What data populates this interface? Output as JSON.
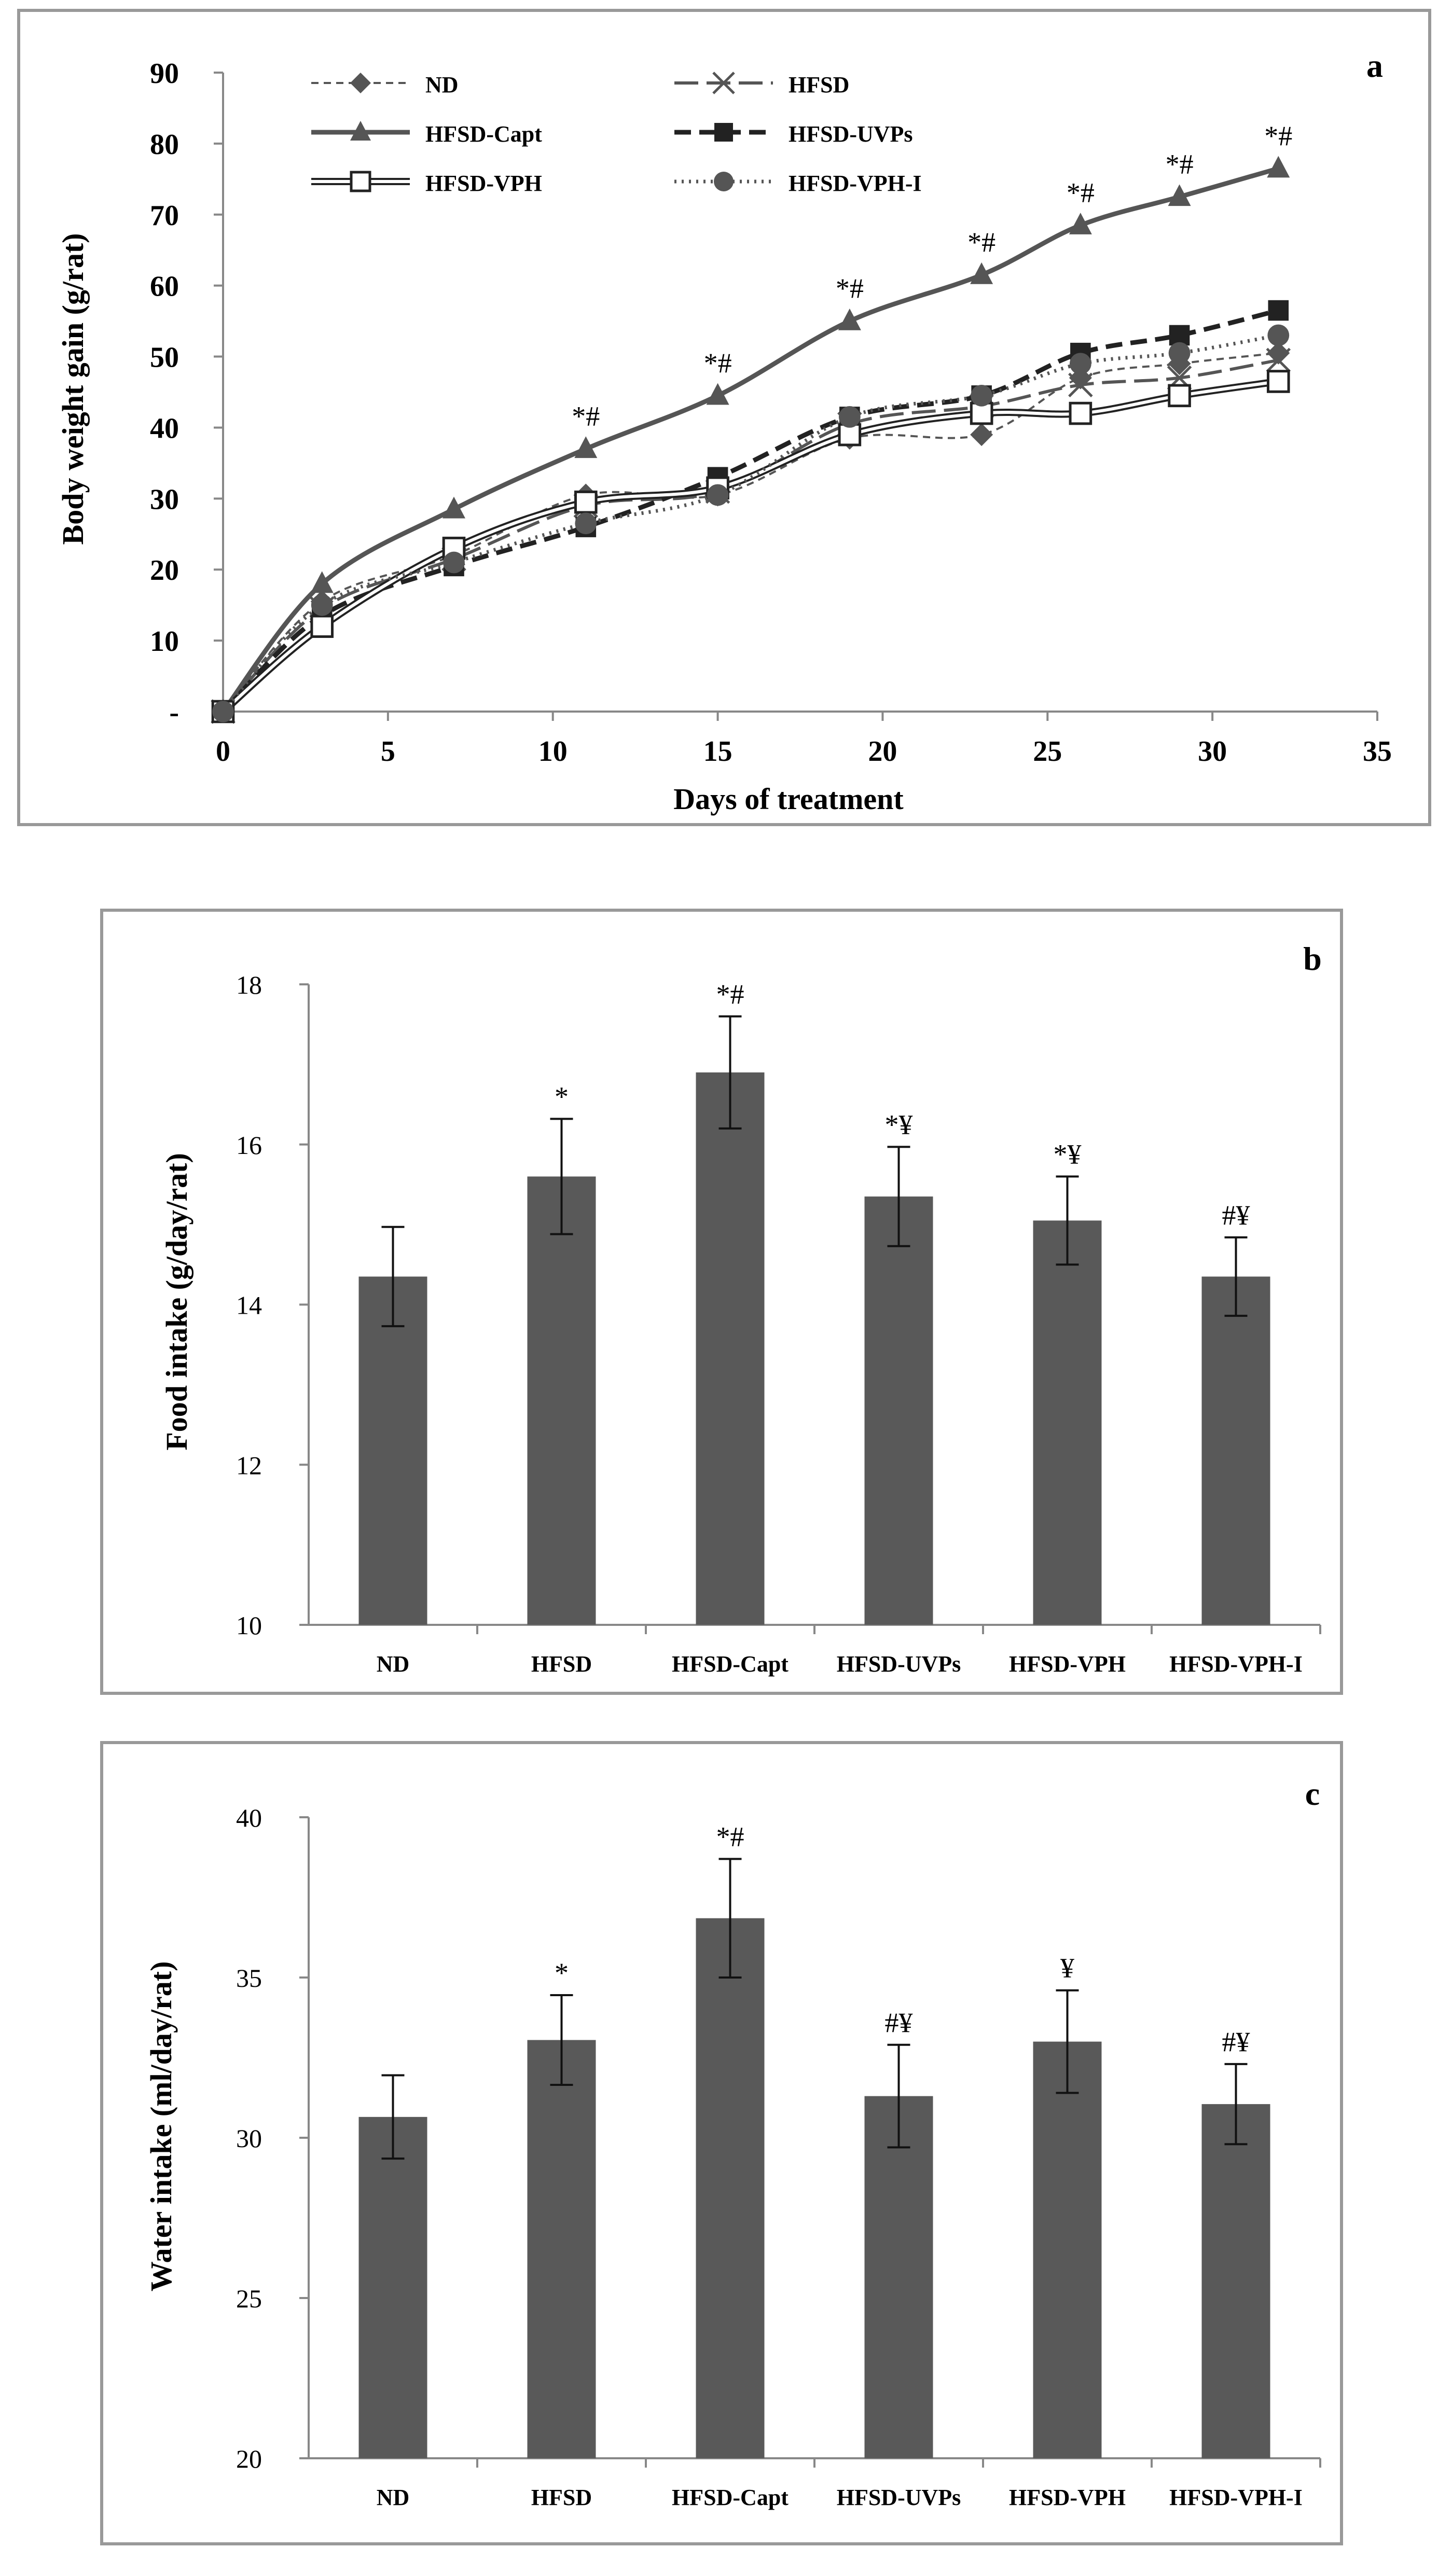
{
  "chart_data": [
    {
      "panel": "a",
      "type": "line",
      "xlabel": "Days of treatment",
      "ylabel": "Body weight gain (g/rat)",
      "xlim": [
        0,
        35
      ],
      "ylim": [
        0,
        90
      ],
      "xticks": [
        "0",
        "5",
        "10",
        "15",
        "20",
        "25",
        "30",
        "35"
      ],
      "yticks": [
        "-",
        "10",
        "20",
        "30",
        "40",
        "50",
        "60",
        "70",
        "80",
        "90"
      ],
      "legend": "top-left",
      "x": [
        0,
        3,
        7,
        11,
        15,
        19,
        23,
        26,
        29,
        32
      ],
      "series": [
        {
          "name": "ND",
          "marker": "diamond",
          "dash": "short-dash",
          "color": "#555555",
          "values": [
            0,
            15.5,
            22,
            30.5,
            30.5,
            38.5,
            39,
            47,
            49,
            50.5
          ]
        },
        {
          "name": "HFSD",
          "marker": "x",
          "dash": "long-dash",
          "color": "#555555",
          "values": [
            0,
            14.5,
            21.5,
            29,
            31,
            40.5,
            43,
            46,
            47,
            49.5
          ]
        },
        {
          "name": "HFSD-Capt",
          "marker": "triangle",
          "dash": "solid-thick",
          "color": "#555555",
          "values": [
            0,
            18,
            28.5,
            37,
            44.5,
            55,
            61.5,
            68.5,
            72.5,
            76.5
          ]
        },
        {
          "name": "HFSD-UVPs",
          "marker": "square",
          "dash": "heavy-dash",
          "color": "#222222",
          "values": [
            0,
            13.5,
            20.5,
            26,
            33,
            41.5,
            44.5,
            50.5,
            53,
            56.5
          ]
        },
        {
          "name": "HFSD-VPH",
          "marker": "open-square",
          "dash": "double-solid",
          "color": "#222222",
          "values": [
            0,
            12,
            23,
            29.5,
            31.5,
            39,
            42,
            42,
            44.5,
            46.5
          ]
        },
        {
          "name": "HFSD-VPH-I",
          "marker": "circle",
          "dash": "dotted",
          "color": "#555555",
          "values": [
            0,
            15,
            21,
            26.5,
            30.5,
            41.5,
            44.5,
            49,
            50.5,
            53
          ]
        }
      ],
      "annotations": [
        {
          "x": 11,
          "y": 37,
          "text": "*#"
        },
        {
          "x": 15,
          "y": 44.5,
          "text": "*#"
        },
        {
          "x": 19,
          "y": 55,
          "text": "*#"
        },
        {
          "x": 23,
          "y": 61.5,
          "text": "*#"
        },
        {
          "x": 26,
          "y": 68.5,
          "text": "*#"
        },
        {
          "x": 29,
          "y": 72.5,
          "text": "*#"
        },
        {
          "x": 32,
          "y": 76.5,
          "text": "*#"
        }
      ]
    },
    {
      "panel": "b",
      "type": "bar",
      "xlabel": "",
      "ylabel": "Food intake  (g/day/rat)",
      "ylim": [
        10,
        18
      ],
      "yticks": [
        "10",
        "12",
        "14",
        "16",
        "18"
      ],
      "categories": [
        "ND",
        "HFSD",
        "HFSD-Capt",
        "HFSD-UVPs",
        "HFSD-VPH",
        "HFSD-VPH-I"
      ],
      "values": [
        14.35,
        15.6,
        16.9,
        15.35,
        15.05,
        14.35
      ],
      "errors": [
        0.62,
        0.72,
        0.7,
        0.62,
        0.55,
        0.49
      ],
      "labels": [
        "",
        "*",
        "*#",
        "*¥",
        "*¥",
        "#¥"
      ],
      "bar_color": "#595959"
    },
    {
      "panel": "c",
      "type": "bar",
      "xlabel": "",
      "ylabel": "Water intake (ml/day/rat)",
      "ylim": [
        20,
        40
      ],
      "yticks": [
        "20",
        "25",
        "30",
        "35",
        "40"
      ],
      "categories": [
        "ND",
        "HFSD",
        "HFSD-Capt",
        "HFSD-UVPs",
        "HFSD-VPH",
        "HFSD-VPH-I"
      ],
      "values": [
        30.65,
        33.05,
        36.85,
        31.3,
        33.0,
        31.05
      ],
      "errors": [
        1.3,
        1.4,
        1.85,
        1.6,
        1.6,
        1.25
      ],
      "labels": [
        "",
        "*",
        "*#",
        "#¥",
        "¥",
        "#¥"
      ],
      "bar_color": "#595959"
    }
  ]
}
